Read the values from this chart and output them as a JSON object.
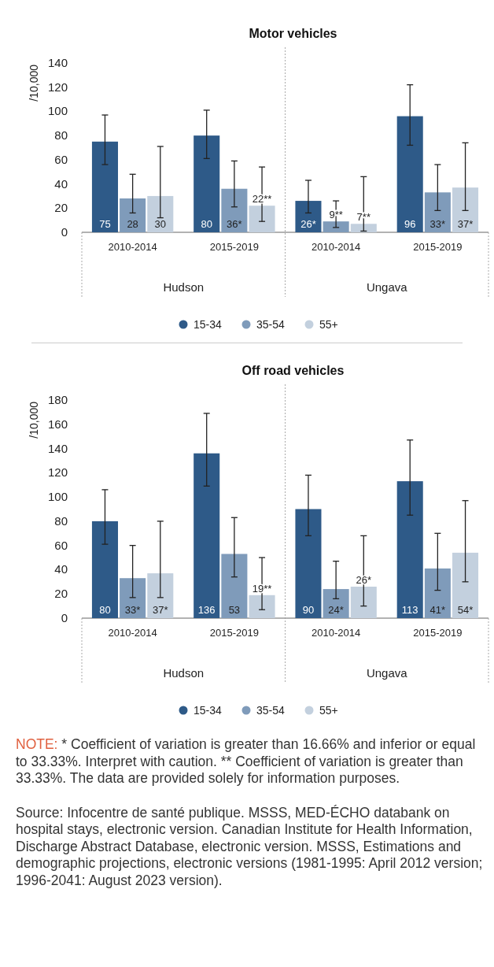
{
  "chart_data": [
    {
      "type": "bar",
      "title": "Motor vehicles",
      "ylabel": "/10,000",
      "categories": [
        "2010-2014",
        "2015-2019",
        "2010-2014",
        "2015-2019"
      ],
      "ylim": [
        0,
        140
      ],
      "yticks": [
        0,
        20,
        40,
        60,
        80,
        100,
        120,
        140
      ],
      "grid": false,
      "legend": "bottom",
      "annotations": [
        "Hudson",
        "Ungava"
      ],
      "series": [
        {
          "name": "15-34",
          "color": "#2e5a88",
          "values": [
            75,
            80,
            26,
            96
          ],
          "value_labels": [
            "75",
            "80",
            "26*",
            "96"
          ],
          "errors": [
            [
              56,
              97
            ],
            [
              61,
              101
            ],
            [
              16,
              43
            ],
            [
              72,
              122
            ]
          ]
        },
        {
          "name": "35-54",
          "color": "#7f9bba",
          "values": [
            28,
            36,
            9,
            33
          ],
          "value_labels": [
            "28",
            "36*",
            "9**",
            "33*"
          ],
          "errors": [
            [
              16,
              48
            ],
            [
              21,
              59
            ],
            [
              4,
              26
            ],
            [
              18,
              56
            ]
          ]
        },
        {
          "name": "55+",
          "color": "#c3d0de",
          "values": [
            30,
            22,
            7,
            37
          ],
          "value_labels": [
            "30",
            "22**",
            "7**",
            "37*"
          ],
          "errors": [
            [
              12,
              71
            ],
            [
              9,
              54
            ],
            [
              1,
              46
            ],
            [
              18,
              74
            ]
          ]
        }
      ]
    },
    {
      "type": "bar",
      "title": "Off road vehicles",
      "ylabel": "/10,000",
      "categories": [
        "2010-2014",
        "2015-2019",
        "2010-2014",
        "2015-2019"
      ],
      "ylim": [
        0,
        180
      ],
      "yticks": [
        0,
        20,
        40,
        60,
        80,
        100,
        120,
        140,
        160,
        180
      ],
      "grid": false,
      "legend": "bottom",
      "annotations": [
        "Hudson",
        "Ungava",
        "NOTE: *  Coefficient of variation is greater than 16.66% and inferior or equal to 33.33%. Interpret with caution. **  Coefficient of variation is greater than 33.33%. The data are provided solely for information purposes.",
        "Source: Infocentre de santé publique. MSSS, MED-ÉCHO databank on hospital stays, electronic version. Canadian Institute for Health Information, Discharge Abstract Database, electronic version. MSSS, Estimations and demographic projections, electronic versions (1981-1995: April 2012 version; 1996-2041: August 2023 version)."
      ],
      "series": [
        {
          "name": "15-34",
          "color": "#2e5a88",
          "values": [
            80,
            136,
            90,
            113
          ],
          "value_labels": [
            "80",
            "136",
            "90",
            "113"
          ],
          "errors": [
            [
              61,
              106
            ],
            [
              109,
              169
            ],
            [
              68,
              118
            ],
            [
              85,
              147
            ]
          ]
        },
        {
          "name": "35-54",
          "color": "#7f9bba",
          "values": [
            33,
            53,
            24,
            41
          ],
          "value_labels": [
            "33*",
            "53",
            "24*",
            "41*"
          ],
          "errors": [
            [
              17,
              60
            ],
            [
              34,
              83
            ],
            [
              16,
              47
            ],
            [
              23,
              70
            ]
          ]
        },
        {
          "name": "55+",
          "color": "#c3d0de",
          "values": [
            37,
            19,
            26,
            54
          ],
          "value_labels": [
            "37*",
            "19**",
            "26*",
            "54*"
          ],
          "errors": [
            [
              17,
              80
            ],
            [
              7,
              50
            ],
            [
              10,
              68
            ],
            [
              30,
              97
            ]
          ]
        }
      ]
    }
  ]
}
